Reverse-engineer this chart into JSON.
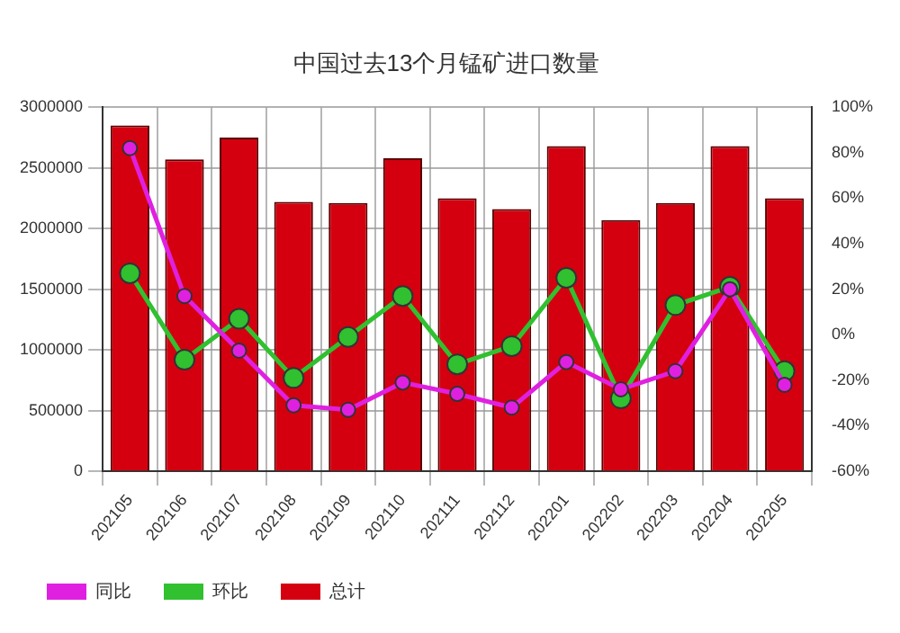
{
  "chart_data": {
    "type": "bar",
    "title": "中国过去13个月锰矿进口数量",
    "categories": [
      "202105",
      "202106",
      "202107",
      "202108",
      "202109",
      "202110",
      "202111",
      "202112",
      "202201",
      "202202",
      "202203",
      "202204",
      "202205"
    ],
    "series": [
      {
        "name": "同比",
        "type": "line",
        "axis": "y2",
        "color": "#e020e0",
        "values": [
          82,
          17,
          -7,
          -31,
          -33,
          -21,
          -26,
          -32,
          -12,
          -24,
          -16,
          20,
          -22
        ]
      },
      {
        "name": "环比",
        "type": "line",
        "axis": "y2",
        "color": "#30c030",
        "values": [
          27,
          -11,
          7,
          -19,
          -1,
          17,
          -13,
          -5,
          25,
          -28,
          13,
          21,
          -16
        ]
      },
      {
        "name": "总计",
        "color": "#d40010",
        "values": [
          2850000,
          2570000,
          2750000,
          2220000,
          2210000,
          2580000,
          2250000,
          2160000,
          2680000,
          2070000,
          2210000,
          2680000,
          2250000
        ]
      }
    ],
    "ylim": [
      0,
      3000000
    ],
    "yticks": [
      0,
      500000,
      1000000,
      1500000,
      2000000,
      2500000,
      3000000
    ],
    "y2lim": [
      -60,
      100
    ],
    "y2ticks": [
      {
        "value": -60,
        "label": "-60%"
      },
      {
        "value": -40,
        "label": "-40%"
      },
      {
        "value": -20,
        "label": "-20%"
      },
      {
        "value": 0,
        "label": "0%"
      },
      {
        "value": 20,
        "label": "20%"
      },
      {
        "value": 40,
        "label": "40%"
      },
      {
        "value": 60,
        "label": "60%"
      },
      {
        "value": 80,
        "label": "80%"
      },
      {
        "value": 100,
        "label": "100%"
      }
    ],
    "grid": true,
    "legend": "bottom left",
    "marker": "circle",
    "line_style": "solid"
  }
}
